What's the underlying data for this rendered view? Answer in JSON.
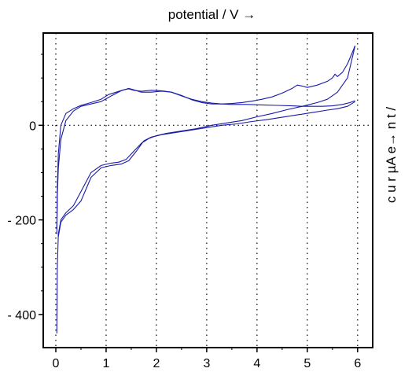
{
  "chart_data": {
    "type": "line",
    "title": "",
    "xlabel": "potential / V →",
    "ylabel": "c u r µA e→ n t /",
    "xlim": [
      -0.25,
      6.3
    ],
    "ylim": [
      -470,
      195
    ],
    "x_ticks": [
      0,
      1,
      2,
      3,
      4,
      5,
      6
    ],
    "y_ticks": [
      -400,
      -200,
      0
    ],
    "x_tick_labels": [
      "0",
      "1",
      "2",
      "3",
      "4",
      "5",
      "6"
    ],
    "y_tick_labels": [
      "- 400",
      "- 200",
      "0"
    ],
    "grid": "dotted",
    "legend": "none",
    "line_color": "#1a1aa8",
    "series": [
      {
        "x": [
          0.02,
          0.03,
          0.05,
          0.1,
          0.2,
          0.35,
          0.5,
          0.7,
          0.9,
          1.1,
          1.3,
          1.45,
          1.55,
          1.7,
          1.9,
          2.1,
          2.3,
          2.5,
          2.7,
          2.9,
          3.1,
          3.3,
          3.5,
          3.8,
          4.1,
          4.4,
          4.7,
          4.9,
          5.1,
          5.3,
          5.5,
          5.7,
          5.85,
          5.95
        ],
        "y": [
          -230,
          -150,
          -90,
          -30,
          10,
          30,
          40,
          45,
          50,
          62,
          73,
          78,
          75,
          70,
          70,
          72,
          70,
          62,
          55,
          50,
          47,
          45,
          44,
          44,
          43,
          42,
          41,
          40,
          40,
          40,
          41,
          44,
          48,
          52
        ]
      },
      {
        "x": [
          5.95,
          5.8,
          5.6,
          5.4,
          5.1,
          4.8,
          4.5,
          4.2,
          3.9,
          3.6,
          3.3,
          3.0,
          2.7,
          2.4,
          2.1,
          1.9,
          1.75,
          1.6,
          1.45,
          1.3,
          1.1,
          0.9,
          0.7,
          0.5,
          0.35,
          0.2,
          0.1,
          0.05
        ],
        "y": [
          50,
          40,
          35,
          32,
          27,
          22,
          17,
          12,
          8,
          3,
          0,
          -5,
          -10,
          -15,
          -20,
          -25,
          -33,
          -55,
          -75,
          -82,
          -85,
          -90,
          -110,
          -160,
          -178,
          -190,
          -205,
          -235
        ]
      },
      {
        "x": [
          0.02,
          0.03,
          0.05,
          0.1,
          0.2,
          0.35,
          0.5,
          0.7,
          0.9,
          1.05,
          1.2,
          1.35,
          1.45,
          1.55,
          1.7,
          1.9,
          2.1,
          2.3,
          2.5,
          2.7,
          2.9,
          3.1,
          3.3,
          3.5,
          3.7,
          3.9,
          4.1,
          4.3,
          4.5,
          4.7,
          4.8,
          4.9,
          5.0,
          5.2,
          5.4,
          5.5,
          5.55,
          5.6,
          5.7,
          5.8,
          5.88,
          5.95
        ],
        "y": [
          -220,
          -130,
          -60,
          0,
          25,
          35,
          42,
          48,
          55,
          65,
          70,
          75,
          77,
          74,
          72,
          74,
          73,
          70,
          63,
          54,
          48,
          45,
          45,
          46,
          48,
          51,
          55,
          60,
          68,
          78,
          85,
          83,
          80,
          85,
          93,
          100,
          108,
          103,
          112,
          130,
          150,
          168
        ]
      },
      {
        "x": [
          5.95,
          5.8,
          5.6,
          5.4,
          5.2,
          4.9,
          4.6,
          4.3,
          4.0,
          3.7,
          3.4,
          3.1,
          2.8,
          2.5,
          2.2,
          2.0,
          1.85,
          1.7,
          1.55,
          1.4,
          1.25,
          1.1,
          0.9,
          0.7,
          0.5,
          0.35,
          0.2,
          0.1,
          0.05,
          0.03,
          0.02
        ],
        "y": [
          168,
          100,
          70,
          55,
          48,
          40,
          33,
          25,
          18,
          10,
          5,
          0,
          -7,
          -12,
          -17,
          -22,
          -28,
          -38,
          -55,
          -72,
          -78,
          -80,
          -85,
          -100,
          -140,
          -170,
          -185,
          -200,
          -230,
          -300,
          -440
        ]
      }
    ]
  }
}
